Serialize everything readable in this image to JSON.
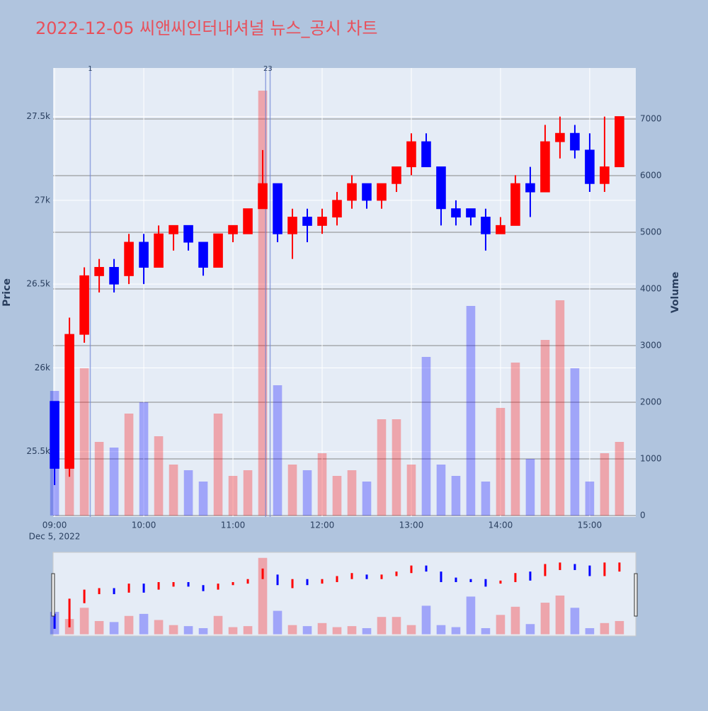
{
  "chart_data": {
    "type": "candlestick",
    "title": "2022-12-05 씨앤씨인터내셔널 뉴스_공시 차트",
    "y_axis_label": "Price",
    "y2_axis_label": "Volume",
    "x_date_label": "Dec 5, 2022",
    "x": [
      "09:00",
      "09:10",
      "09:20",
      "09:30",
      "09:40",
      "09:50",
      "10:00",
      "10:10",
      "10:20",
      "10:30",
      "10:40",
      "10:50",
      "11:00",
      "11:10",
      "11:20",
      "11:30",
      "11:40",
      "11:50",
      "12:00",
      "12:10",
      "12:20",
      "12:30",
      "12:40",
      "12:50",
      "13:00",
      "13:10",
      "13:20",
      "13:30",
      "13:40",
      "13:50",
      "14:00",
      "14:10",
      "14:20",
      "14:30",
      "14:40",
      "14:50",
      "15:00",
      "15:10",
      "15:20"
    ],
    "open": [
      25800,
      25400,
      26200,
      26550,
      26600,
      26550,
      26750,
      26600,
      26800,
      26850,
      26750,
      26600,
      26800,
      26800,
      26950,
      27100,
      26800,
      26900,
      26850,
      26900,
      27000,
      27100,
      27000,
      27100,
      27200,
      27350,
      27200,
      26950,
      26950,
      26900,
      26800,
      26850,
      27100,
      27050,
      27350,
      27400,
      27300,
      27100,
      27200
    ],
    "high": [
      25800,
      26300,
      26600,
      26650,
      26650,
      26800,
      26800,
      26850,
      26850,
      26850,
      26750,
      26800,
      26850,
      26950,
      27300,
      27100,
      26950,
      26950,
      26950,
      27050,
      27150,
      27100,
      27100,
      27200,
      27400,
      27400,
      27200,
      27000,
      26950,
      26950,
      26900,
      27150,
      27200,
      27450,
      27500,
      27450,
      27400,
      27500,
      27500
    ],
    "low": [
      25300,
      25350,
      26150,
      26450,
      26450,
      26500,
      26500,
      26600,
      26700,
      26700,
      26550,
      26600,
      26750,
      26800,
      26950,
      26750,
      26650,
      26750,
      26800,
      26850,
      26950,
      26950,
      26950,
      27050,
      27150,
      27200,
      26850,
      26850,
      26850,
      26700,
      26800,
      26850,
      26900,
      27050,
      27250,
      27250,
      27050,
      27050,
      27200
    ],
    "close": [
      25400,
      26200,
      26550,
      26600,
      26500,
      26750,
      26600,
      26800,
      26850,
      26750,
      26600,
      26800,
      26850,
      26950,
      27100,
      26800,
      26900,
      26850,
      26900,
      27000,
      27100,
      27000,
      27100,
      27200,
      27350,
      27200,
      26950,
      26900,
      26900,
      26800,
      26850,
      27100,
      27050,
      27350,
      27400,
      27300,
      27100,
      27200,
      27500
    ],
    "volume": [
      2200,
      1500,
      2600,
      1300,
      1200,
      1800,
      2000,
      1400,
      900,
      800,
      600,
      1800,
      700,
      800,
      7500,
      2300,
      900,
      800,
      1100,
      700,
      800,
      600,
      1700,
      1700,
      900,
      2800,
      900,
      700,
      3700,
      600,
      1900,
      2700,
      1000,
      3100,
      3800,
      2600,
      600,
      1100,
      1300
    ],
    "up_color": "#ff0000",
    "down_color": "#0000ff",
    "events": [
      {
        "x": "09:24",
        "label": "1"
      },
      {
        "x": "11:22",
        "label": "2"
      },
      {
        "x": "11:25",
        "label": "3"
      }
    ],
    "xlim": [
      "08:59",
      "15:31"
    ],
    "xticks": [
      "09:00",
      "10:00",
      "11:00",
      "12:00",
      "13:00",
      "14:00",
      "15:00"
    ],
    "ylim": [
      25110,
      27790
    ],
    "yticks": [
      {
        "value": 25500,
        "label": "25.5k"
      },
      {
        "value": 26000,
        "label": "26k"
      },
      {
        "value": 26500,
        "label": "26.5k"
      },
      {
        "value": 27000,
        "label": "27k"
      },
      {
        "value": 27500,
        "label": "27.5k"
      }
    ],
    "y2lim": [
      -25,
      7900
    ],
    "y2ticks": [
      0,
      1000,
      2000,
      3000,
      4000,
      5000,
      6000,
      7000
    ],
    "grid": true,
    "rangeslider": true
  }
}
